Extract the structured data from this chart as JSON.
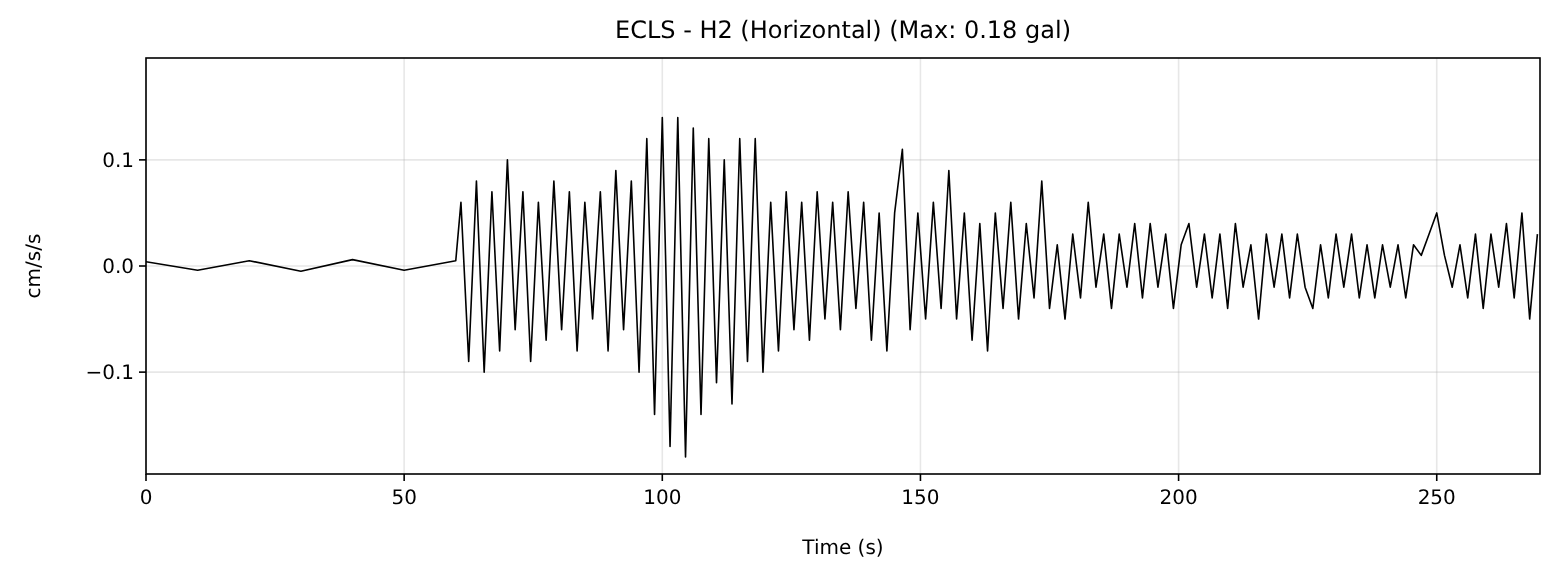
{
  "chart_data": {
    "type": "line",
    "title": "ECLS - H2 (Horizontal) (Max: 0.18 gal)",
    "xlabel": "Time (s)",
    "ylabel": "cm/s/s",
    "xlim": [
      0,
      270
    ],
    "xticks": [
      0,
      50,
      100,
      150,
      200,
      250
    ],
    "ylim": [
      -0.196,
      0.196
    ],
    "yticks": [
      {
        "value": -0.1,
        "label": "−0.1"
      },
      {
        "value": 0,
        "label": "0.0"
      },
      {
        "value": 0.1,
        "label": "0.1"
      }
    ],
    "grid": true,
    "line_style": "solid",
    "marker": "none",
    "series": [
      {
        "color": "#000000",
        "x": [
          0,
          10,
          20,
          30,
          40,
          50,
          60,
          61,
          62.5,
          64,
          65.5,
          67,
          68.5,
          70,
          71.5,
          73,
          74.5,
          76,
          77.5,
          79,
          80.5,
          82,
          83.5,
          85,
          86.5,
          88,
          89.5,
          91,
          92.5,
          94,
          95.5,
          97,
          98.5,
          100,
          101.5,
          103,
          104.5,
          106,
          107.5,
          109,
          110.5,
          112,
          113.5,
          115,
          116.5,
          118,
          119.5,
          121,
          122.5,
          124,
          125.5,
          127,
          128.5,
          130,
          131.5,
          133,
          134.5,
          136,
          137.5,
          139,
          140.5,
          142,
          143.5,
          145,
          146.5,
          148,
          149.5,
          151,
          152.5,
          154,
          155.5,
          157,
          158.5,
          160,
          161.5,
          163,
          164.5,
          166,
          167.5,
          169,
          170.5,
          172,
          173.5,
          175,
          176.5,
          178,
          179.5,
          181,
          182.5,
          184,
          185.5,
          187,
          188.5,
          190,
          191.5,
          193,
          194.5,
          196,
          197.5,
          199,
          200.5,
          202,
          203.5,
          205,
          206.5,
          208,
          209.5,
          211,
          212.5,
          214,
          215.5,
          217,
          218.5,
          220,
          221.5,
          223,
          224.5,
          226,
          227.5,
          229,
          230.5,
          232,
          233.5,
          235,
          236.5,
          238,
          239.5,
          241,
          242.5,
          244,
          245.5,
          247,
          248.5,
          250,
          251.5,
          253,
          254.5,
          256,
          257.5,
          259,
          260.5,
          262,
          263.5,
          265,
          266.5,
          268,
          269.5
        ],
        "values": [
          0.004,
          -0.004,
          0.005,
          -0.005,
          0.006,
          -0.004,
          0.005,
          0.06,
          -0.09,
          0.08,
          -0.1,
          0.07,
          -0.08,
          0.1,
          -0.06,
          0.07,
          -0.09,
          0.06,
          -0.07,
          0.08,
          -0.06,
          0.07,
          -0.08,
          0.06,
          -0.05,
          0.07,
          -0.08,
          0.09,
          -0.06,
          0.08,
          -0.1,
          0.12,
          -0.14,
          0.14,
          -0.17,
          0.14,
          -0.18,
          0.13,
          -0.14,
          0.12,
          -0.11,
          0.1,
          -0.13,
          0.12,
          -0.09,
          0.12,
          -0.1,
          0.06,
          -0.08,
          0.07,
          -0.06,
          0.06,
          -0.07,
          0.07,
          -0.05,
          0.06,
          -0.06,
          0.07,
          -0.04,
          0.06,
          -0.07,
          0.05,
          -0.08,
          0.05,
          0.11,
          -0.06,
          0.05,
          -0.05,
          0.06,
          -0.04,
          0.09,
          -0.05,
          0.05,
          -0.07,
          0.04,
          -0.08,
          0.05,
          -0.04,
          0.06,
          -0.05,
          0.04,
          -0.03,
          0.08,
          -0.04,
          0.02,
          -0.05,
          0.03,
          -0.03,
          0.06,
          -0.02,
          0.03,
          -0.04,
          0.03,
          -0.02,
          0.04,
          -0.03,
          0.04,
          -0.02,
          0.03,
          -0.04,
          0.02,
          0.04,
          -0.02,
          0.03,
          -0.03,
          0.03,
          -0.04,
          0.04,
          -0.02,
          0.02,
          -0.05,
          0.03,
          -0.02,
          0.03,
          -0.03,
          0.03,
          -0.02,
          -0.04,
          0.02,
          -0.03,
          0.03,
          -0.02,
          0.03,
          -0.03,
          0.02,
          -0.03,
          0.02,
          -0.02,
          0.02,
          -0.03,
          0.02,
          0.01,
          0.03,
          0.05,
          0.01,
          -0.02,
          0.02,
          -0.03,
          0.03,
          -0.04,
          0.03,
          -0.02,
          0.04,
          -0.03,
          0.05,
          -0.05,
          0.03
        ]
      }
    ]
  }
}
